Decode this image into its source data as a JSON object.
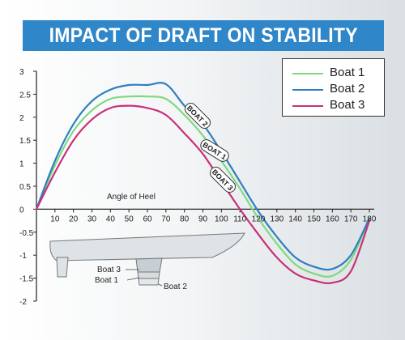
{
  "title": "IMPACT OF DRAFT ON STABILITY",
  "colors": {
    "title_bar": "#2f86c8",
    "boat1": "#7fd97f",
    "boat2": "#2f7fc0",
    "boat3": "#c8307a"
  },
  "icons": [
    "hull-diagram-icon"
  ],
  "hull_labels": [
    "Boat 3",
    "Boat 1",
    "Boat 2"
  ],
  "curve_tags": [
    "BOAT 2",
    "BOAT 1",
    "BOAT 3"
  ],
  "chart_data": {
    "type": "line",
    "title": "IMPACT OF DRAFT ON STABILITY",
    "xlabel": "Angle of Heel",
    "ylabel": "",
    "xlim": [
      0,
      180
    ],
    "ylim": [
      -2,
      3
    ],
    "x_ticks": [
      10,
      20,
      30,
      40,
      50,
      60,
      70,
      80,
      90,
      100,
      110,
      120,
      130,
      140,
      150,
      160,
      170,
      180
    ],
    "y_ticks": [
      3,
      2.5,
      2,
      1.5,
      1,
      0.5,
      0,
      -0.5,
      -1,
      -1.5,
      -2
    ],
    "y_tick_labels": [
      "3",
      "2.5",
      "2",
      "1.5",
      "1",
      "0.5",
      "0",
      "-0.5",
      "-1",
      "-1.5",
      "-2"
    ],
    "grid": false,
    "legend_position": "top-right",
    "series": [
      {
        "name": "Boat 1",
        "color": "#7fd97f",
        "x": [
          0,
          10,
          20,
          30,
          40,
          50,
          60,
          70,
          80,
          90,
          100,
          110,
          120,
          130,
          140,
          150,
          160,
          170,
          180
        ],
        "y": [
          0,
          0.95,
          1.7,
          2.15,
          2.4,
          2.45,
          2.45,
          2.4,
          2.05,
          1.6,
          1.05,
          0.45,
          -0.2,
          -0.75,
          -1.2,
          -1.4,
          -1.45,
          -1.1,
          -0.2
        ]
      },
      {
        "name": "Boat 2",
        "color": "#2f7fc0",
        "x": [
          0,
          10,
          20,
          30,
          40,
          50,
          60,
          70,
          80,
          90,
          100,
          110,
          120,
          130,
          140,
          150,
          160,
          170,
          180
        ],
        "y": [
          0,
          1.05,
          1.85,
          2.35,
          2.6,
          2.7,
          2.7,
          2.72,
          2.25,
          1.85,
          1.25,
          0.6,
          -0.05,
          -0.6,
          -1.05,
          -1.25,
          -1.3,
          -1.0,
          -0.2
        ]
      },
      {
        "name": "Boat 3",
        "color": "#c8307a",
        "x": [
          0,
          10,
          20,
          30,
          40,
          50,
          60,
          70,
          80,
          90,
          100,
          110,
          120,
          130,
          140,
          150,
          160,
          170,
          180
        ],
        "y": [
          0,
          0.8,
          1.5,
          1.95,
          2.2,
          2.25,
          2.2,
          2.05,
          1.65,
          1.2,
          0.6,
          0.0,
          -0.55,
          -1.05,
          -1.4,
          -1.55,
          -1.6,
          -1.35,
          -0.25
        ]
      }
    ]
  }
}
